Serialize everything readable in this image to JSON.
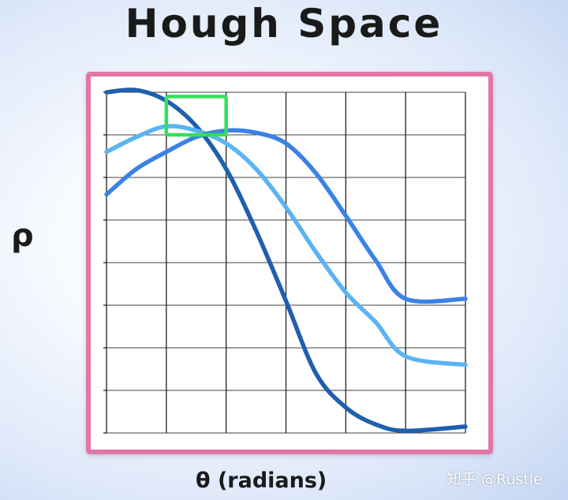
{
  "title": "Hough Space",
  "ylabel": "ρ",
  "xlabel": "θ (radians)",
  "watermark": "知乎 @Rustle",
  "colors": {
    "frame_border": "#e277a6",
    "highlight_box": "#33e05a",
    "curve_dark": "#1f5fae",
    "curve_medium": "#3b82e6",
    "curve_light": "#5bb4f2",
    "grid": "#222222"
  },
  "chart_data": {
    "type": "line",
    "grid": true,
    "columns": 6,
    "rows": 8,
    "series": [
      {
        "color": "#1f5fae",
        "points": [
          [
            0.0,
            8.0
          ],
          [
            0.5,
            8.05
          ],
          [
            1.0,
            7.8
          ],
          [
            1.5,
            7.2
          ],
          [
            2.0,
            6.2
          ],
          [
            2.5,
            4.75
          ],
          [
            3.0,
            3.1
          ],
          [
            3.5,
            1.4
          ],
          [
            4.0,
            0.6
          ],
          [
            4.5,
            0.2
          ],
          [
            5.0,
            0.05
          ],
          [
            6.0,
            0.15
          ]
        ]
      },
      {
        "color": "#5bb4f2",
        "points": [
          [
            0.0,
            6.6
          ],
          [
            0.5,
            6.95
          ],
          [
            1.0,
            7.2
          ],
          [
            1.5,
            7.1
          ],
          [
            2.0,
            6.8
          ],
          [
            2.5,
            6.2
          ],
          [
            3.0,
            5.3
          ],
          [
            3.5,
            4.25
          ],
          [
            4.0,
            3.3
          ],
          [
            4.5,
            2.6
          ],
          [
            5.0,
            1.8
          ],
          [
            6.0,
            1.6
          ]
        ]
      },
      {
        "color": "#3b82e6",
        "points": [
          [
            0.0,
            5.6
          ],
          [
            0.5,
            6.2
          ],
          [
            1.0,
            6.6
          ],
          [
            1.5,
            6.95
          ],
          [
            2.0,
            7.1
          ],
          [
            2.5,
            7.05
          ],
          [
            3.0,
            6.8
          ],
          [
            3.5,
            6.1
          ],
          [
            4.0,
            5.1
          ],
          [
            4.5,
            4.05
          ],
          [
            5.0,
            3.15
          ],
          [
            6.0,
            3.15
          ]
        ]
      }
    ],
    "highlight": {
      "x_range": [
        1.0,
        2.0
      ],
      "y_range": [
        7.0,
        7.9
      ]
    }
  }
}
